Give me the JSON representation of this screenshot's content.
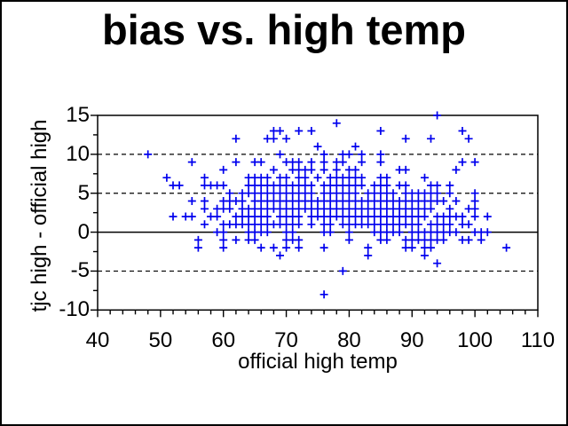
{
  "window": {
    "background": "#ffffff",
    "frame_color": "#000000",
    "axis_color": "#000000",
    "text_color": "#000000"
  },
  "chart_data": {
    "type": "scatter",
    "title": "bias vs. high temp",
    "xlabel": "official high temp",
    "ylabel": "tjc high - official high",
    "xlim": [
      40,
      110
    ],
    "ylim": [
      -10,
      15
    ],
    "x_major_ticks": [
      40,
      50,
      60,
      70,
      80,
      90,
      100,
      110
    ],
    "x_minor_step": 2,
    "y_major_ticks": [
      15,
      10,
      5,
      0,
      -5,
      -10
    ],
    "y_minor_step": 2.5,
    "gridlines": {
      "dashed_y": [
        10,
        5,
        -5
      ],
      "solid_y": 0
    },
    "legend": "none",
    "marker": {
      "symbol": "plus",
      "color": "#0000ee",
      "size": 9,
      "stroke": 1.7
    },
    "points": [
      [
        94,
        15
      ],
      [
        78,
        14
      ],
      [
        68,
        13
      ],
      [
        69,
        13
      ],
      [
        72,
        13
      ],
      [
        74,
        13
      ],
      [
        85,
        13
      ],
      [
        98,
        13
      ],
      [
        62,
        12
      ],
      [
        67,
        12
      ],
      [
        68,
        12
      ],
      [
        70,
        12
      ],
      [
        89,
        12
      ],
      [
        93,
        12
      ],
      [
        99,
        12
      ],
      [
        75,
        11
      ],
      [
        81,
        11
      ],
      [
        48,
        10
      ],
      [
        69,
        10
      ],
      [
        76,
        10
      ],
      [
        79,
        10
      ],
      [
        80,
        10
      ],
      [
        82,
        10
      ],
      [
        85,
        10
      ],
      [
        55,
        9
      ],
      [
        62,
        9
      ],
      [
        65,
        9
      ],
      [
        66,
        9
      ],
      [
        70,
        9
      ],
      [
        71,
        9
      ],
      [
        72,
        9
      ],
      [
        74,
        9
      ],
      [
        76,
        9
      ],
      [
        78,
        9
      ],
      [
        79,
        9
      ],
      [
        82,
        9
      ],
      [
        85,
        9
      ],
      [
        98,
        9
      ],
      [
        100,
        9
      ],
      [
        60,
        8
      ],
      [
        68,
        8
      ],
      [
        71,
        8
      ],
      [
        72,
        8
      ],
      [
        73,
        8
      ],
      [
        74,
        8
      ],
      [
        76,
        8
      ],
      [
        78,
        8
      ],
      [
        80,
        8
      ],
      [
        81,
        8
      ],
      [
        88,
        8
      ],
      [
        89,
        8
      ],
      [
        97,
        8
      ],
      [
        51,
        7
      ],
      [
        57,
        7
      ],
      [
        64,
        7
      ],
      [
        65,
        7
      ],
      [
        66,
        7
      ],
      [
        67,
        7
      ],
      [
        69,
        7
      ],
      [
        70,
        7
      ],
      [
        72,
        7
      ],
      [
        73,
        7
      ],
      [
        75,
        7
      ],
      [
        77,
        7
      ],
      [
        78,
        7
      ],
      [
        79,
        7
      ],
      [
        80,
        7
      ],
      [
        81,
        7
      ],
      [
        82,
        7
      ],
      [
        85,
        7
      ],
      [
        86,
        7
      ],
      [
        92,
        7
      ],
      [
        52,
        6
      ],
      [
        53,
        6
      ],
      [
        57,
        6
      ],
      [
        58,
        6
      ],
      [
        59,
        6
      ],
      [
        60,
        6
      ],
      [
        64,
        6
      ],
      [
        65,
        6
      ],
      [
        66,
        6
      ],
      [
        67,
        6
      ],
      [
        68,
        6
      ],
      [
        69,
        6
      ],
      [
        70,
        6
      ],
      [
        71,
        6
      ],
      [
        72,
        6
      ],
      [
        73,
        6
      ],
      [
        74,
        6
      ],
      [
        76,
        6
      ],
      [
        77,
        6
      ],
      [
        78,
        6
      ],
      [
        79,
        6
      ],
      [
        80,
        6
      ],
      [
        81,
        6
      ],
      [
        82,
        6
      ],
      [
        84,
        6
      ],
      [
        85,
        6
      ],
      [
        86,
        6
      ],
      [
        88,
        6
      ],
      [
        89,
        6
      ],
      [
        93,
        6
      ],
      [
        94,
        6
      ],
      [
        96,
        6
      ],
      [
        61,
        5
      ],
      [
        63,
        5
      ],
      [
        64,
        5
      ],
      [
        65,
        5
      ],
      [
        66,
        5
      ],
      [
        67,
        5
      ],
      [
        68,
        5
      ],
      [
        69,
        5
      ],
      [
        70,
        5
      ],
      [
        71,
        5
      ],
      [
        72,
        5
      ],
      [
        73,
        5
      ],
      [
        74,
        5
      ],
      [
        76,
        5
      ],
      [
        77,
        5
      ],
      [
        78,
        5
      ],
      [
        79,
        5
      ],
      [
        80,
        5
      ],
      [
        81,
        5
      ],
      [
        83,
        5
      ],
      [
        84,
        5
      ],
      [
        85,
        5
      ],
      [
        86,
        5
      ],
      [
        87,
        5
      ],
      [
        89,
        5
      ],
      [
        90,
        5
      ],
      [
        91,
        5
      ],
      [
        92,
        5
      ],
      [
        93,
        5
      ],
      [
        94,
        5
      ],
      [
        96,
        5
      ],
      [
        100,
        5
      ],
      [
        55,
        4
      ],
      [
        57,
        4
      ],
      [
        60,
        4
      ],
      [
        61,
        4
      ],
      [
        62,
        4
      ],
      [
        63,
        4
      ],
      [
        65,
        4
      ],
      [
        66,
        4
      ],
      [
        67,
        4
      ],
      [
        68,
        4
      ],
      [
        69,
        4
      ],
      [
        70,
        4
      ],
      [
        71,
        4
      ],
      [
        72,
        4
      ],
      [
        73,
        4
      ],
      [
        74,
        4
      ],
      [
        75,
        4
      ],
      [
        76,
        4
      ],
      [
        77,
        4
      ],
      [
        78,
        4
      ],
      [
        79,
        4
      ],
      [
        80,
        4
      ],
      [
        81,
        4
      ],
      [
        82,
        4
      ],
      [
        83,
        4
      ],
      [
        84,
        4
      ],
      [
        85,
        4
      ],
      [
        86,
        4
      ],
      [
        87,
        4
      ],
      [
        88,
        4
      ],
      [
        89,
        4
      ],
      [
        90,
        4
      ],
      [
        91,
        4
      ],
      [
        92,
        4
      ],
      [
        93,
        4
      ],
      [
        94,
        4
      ],
      [
        95,
        4
      ],
      [
        97,
        4
      ],
      [
        100,
        4
      ],
      [
        57,
        3
      ],
      [
        59,
        3
      ],
      [
        60,
        3
      ],
      [
        61,
        3
      ],
      [
        63,
        3
      ],
      [
        64,
        3
      ],
      [
        65,
        3
      ],
      [
        66,
        3
      ],
      [
        67,
        3
      ],
      [
        68,
        3
      ],
      [
        69,
        3
      ],
      [
        70,
        3
      ],
      [
        71,
        3
      ],
      [
        72,
        3
      ],
      [
        73,
        3
      ],
      [
        74,
        3
      ],
      [
        75,
        3
      ],
      [
        76,
        3
      ],
      [
        77,
        3
      ],
      [
        78,
        3
      ],
      [
        79,
        3
      ],
      [
        80,
        3
      ],
      [
        81,
        3
      ],
      [
        82,
        3
      ],
      [
        83,
        3
      ],
      [
        84,
        3
      ],
      [
        85,
        3
      ],
      [
        86,
        3
      ],
      [
        87,
        3
      ],
      [
        88,
        3
      ],
      [
        89,
        3
      ],
      [
        90,
        3
      ],
      [
        91,
        3
      ],
      [
        92,
        3
      ],
      [
        93,
        3
      ],
      [
        96,
        3
      ],
      [
        99,
        3
      ],
      [
        100,
        3
      ],
      [
        52,
        2
      ],
      [
        54,
        2
      ],
      [
        55,
        2
      ],
      [
        58,
        2
      ],
      [
        59,
        2
      ],
      [
        62,
        2
      ],
      [
        63,
        2
      ],
      [
        64,
        2
      ],
      [
        65,
        2
      ],
      [
        66,
        2
      ],
      [
        67,
        2
      ],
      [
        69,
        2
      ],
      [
        70,
        2
      ],
      [
        71,
        2
      ],
      [
        72,
        2
      ],
      [
        74,
        2
      ],
      [
        75,
        2
      ],
      [
        76,
        2
      ],
      [
        77,
        2
      ],
      [
        78,
        2
      ],
      [
        79,
        2
      ],
      [
        80,
        2
      ],
      [
        81,
        2
      ],
      [
        82,
        2
      ],
      [
        83,
        2
      ],
      [
        84,
        2
      ],
      [
        85,
        2
      ],
      [
        86,
        2
      ],
      [
        87,
        2
      ],
      [
        88,
        2
      ],
      [
        89,
        2
      ],
      [
        90,
        2
      ],
      [
        91,
        2
      ],
      [
        92,
        2
      ],
      [
        94,
        2
      ],
      [
        95,
        2
      ],
      [
        96,
        2
      ],
      [
        97,
        2
      ],
      [
        98,
        2
      ],
      [
        100,
        2
      ],
      [
        102,
        2
      ],
      [
        57,
        1
      ],
      [
        60,
        1
      ],
      [
        61,
        1
      ],
      [
        62,
        1
      ],
      [
        63,
        1
      ],
      [
        64,
        1
      ],
      [
        65,
        1
      ],
      [
        66,
        1
      ],
      [
        67,
        1
      ],
      [
        68,
        1
      ],
      [
        69,
        1
      ],
      [
        70,
        1
      ],
      [
        71,
        1
      ],
      [
        72,
        1
      ],
      [
        74,
        1
      ],
      [
        76,
        1
      ],
      [
        77,
        1
      ],
      [
        79,
        1
      ],
      [
        80,
        1
      ],
      [
        81,
        1
      ],
      [
        82,
        1
      ],
      [
        83,
        1
      ],
      [
        84,
        1
      ],
      [
        85,
        1
      ],
      [
        86,
        1
      ],
      [
        87,
        1
      ],
      [
        88,
        1
      ],
      [
        89,
        1
      ],
      [
        90,
        1
      ],
      [
        91,
        1
      ],
      [
        93,
        1
      ],
      [
        94,
        1
      ],
      [
        95,
        1
      ],
      [
        96,
        1
      ],
      [
        98,
        1
      ],
      [
        99,
        1
      ],
      [
        59,
        0
      ],
      [
        60,
        0
      ],
      [
        64,
        0
      ],
      [
        65,
        0
      ],
      [
        66,
        0
      ],
      [
        67,
        0
      ],
      [
        70,
        0
      ],
      [
        71,
        0
      ],
      [
        76,
        0
      ],
      [
        77,
        0
      ],
      [
        80,
        0
      ],
      [
        84,
        0
      ],
      [
        85,
        0
      ],
      [
        86,
        0
      ],
      [
        87,
        0
      ],
      [
        88,
        0
      ],
      [
        90,
        0
      ],
      [
        91,
        0
      ],
      [
        92,
        0
      ],
      [
        93,
        0
      ],
      [
        94,
        0
      ],
      [
        95,
        0
      ],
      [
        96,
        0
      ],
      [
        97,
        0
      ],
      [
        100,
        0
      ],
      [
        101,
        0
      ],
      [
        102,
        0
      ],
      [
        56,
        -1
      ],
      [
        60,
        -1
      ],
      [
        62,
        -1
      ],
      [
        64,
        -1
      ],
      [
        65,
        -1
      ],
      [
        70,
        -1
      ],
      [
        71,
        -1
      ],
      [
        72,
        -1
      ],
      [
        80,
        -1
      ],
      [
        85,
        -1
      ],
      [
        86,
        -1
      ],
      [
        89,
        -1
      ],
      [
        90,
        -1
      ],
      [
        91,
        -1
      ],
      [
        92,
        -1
      ],
      [
        93,
        -1
      ],
      [
        94,
        -1
      ],
      [
        95,
        -1
      ],
      [
        98,
        -1
      ],
      [
        99,
        -1
      ],
      [
        101,
        -1
      ],
      [
        56,
        -2
      ],
      [
        60,
        -2
      ],
      [
        66,
        -2
      ],
      [
        68,
        -2
      ],
      [
        70,
        -2
      ],
      [
        72,
        -2
      ],
      [
        76,
        -2
      ],
      [
        83,
        -2
      ],
      [
        89,
        -2
      ],
      [
        90,
        -2
      ],
      [
        92,
        -2
      ],
      [
        93,
        -2
      ],
      [
        105,
        -2
      ],
      [
        69,
        -3
      ],
      [
        83,
        -3
      ],
      [
        92,
        -3
      ],
      [
        94,
        -4
      ],
      [
        79,
        -5
      ],
      [
        76,
        -8
      ]
    ]
  }
}
